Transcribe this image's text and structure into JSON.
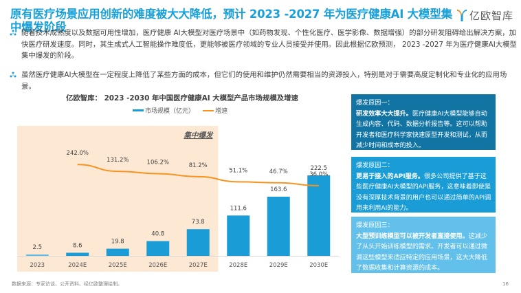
{
  "header": {
    "title": "原有医疗场景应用创新的难度被大大降低，预计 2023 -2027 年为医疗健康AI 大模型集中爆发阶段",
    "logo_text": "亿欧智库",
    "logo_icon": "y-logo-icon"
  },
  "bullets": [
    {
      "icon": "dots-bullet-icon",
      "text": "随着技术成熟度以及数据可用性增加，医疗健康 AI大模型对医疗场景中（如药物发现、个性化医疗、医学影像、数据增强）的部分研发阻碍给出解决方案，加快医疗研发速度。同时，其生成式人工智能操作难度低，更能够被医疗领域的专业人员接受并使用。因此根据亿欧预测，  2023 -2027 年为医疗健康AI大模型集中爆发的阶段。"
    },
    {
      "icon": "dots-bullet-icon",
      "text": "虽然医疗健康AI大模型在一定程度上降低了某些方面的成本，但它们的使用和维护仍然需要相当的资源投入，特别是对于需要高度定制化和专业化的应用场景。"
    }
  ],
  "chart_data": {
    "type": "bar",
    "title": "亿欧智库：  2023 -2030 年中国医疗健康AI 大模型产品市场规模及增速",
    "categories": [
      "2023",
      "2024E",
      "2025E",
      "2026E",
      "2027E",
      "2028E",
      "2029E",
      "2030E"
    ],
    "series": [
      {
        "name": "市场规模（亿元）",
        "type": "bar",
        "color": "#1a9cd6",
        "values": [
          2.5,
          8.6,
          19.8,
          40.8,
          73.8,
          111.6,
          163.6,
          222.5
        ],
        "labels": [
          "2.5",
          "8.6",
          "19.8",
          "40.8",
          "73.8",
          "111.6",
          "163.6",
          "222.5"
        ]
      },
      {
        "name": "增速",
        "type": "line",
        "color": "#f7931e",
        "values": [
          null,
          242.0,
          131.2,
          106.2,
          81.2,
          51.1,
          46.7,
          36.0
        ],
        "labels": [
          null,
          "242.0%",
          "131.2%",
          "106.2%",
          "81.2%",
          "51.1%",
          "46.7%",
          "36.0%"
        ]
      }
    ],
    "highlight": {
      "label": "集中爆发",
      "from": "2023",
      "to": "2027E",
      "color": "#fde8d4"
    },
    "legend": "top-center",
    "grid": false,
    "xlabel": "",
    "ylabel": ""
  },
  "reasons": [
    {
      "heading": "爆发原因一：",
      "bold": "研发效率大大提升。",
      "text": "医疗健康AI大模型能够自动生成内容、代码、数据分析报告等。这可以帮助开发者和医疗科学家快速原型开发和测试，从而减少时间和成本的投入。",
      "color": "#1274a2"
    },
    {
      "heading": "爆发原因二：",
      "bold": "更易于接入的API服务。",
      "text": "很多公司提供了基于这些医疗健康AI大模型的API服务，这意味着即使是没有深厚技术背景的用户也可以通过简单的API调用来利用AI的能力。",
      "color": "#1a9cd6"
    },
    {
      "heading": "爆发原因三：",
      "bold": "大型预训练模型可以被开发者直接使用。",
      "text": "这减少了从头开始训练模型的需求。开发者可以通过微调这些模型来适应特定的应用场景，这大大降低了数据收集和计算资源的成本。",
      "color": "#63c0ea"
    }
  ],
  "footer": {
    "source": "数据来源：专家访谈、公开资料、经亿欧整理绘制。",
    "page_number": "16"
  }
}
